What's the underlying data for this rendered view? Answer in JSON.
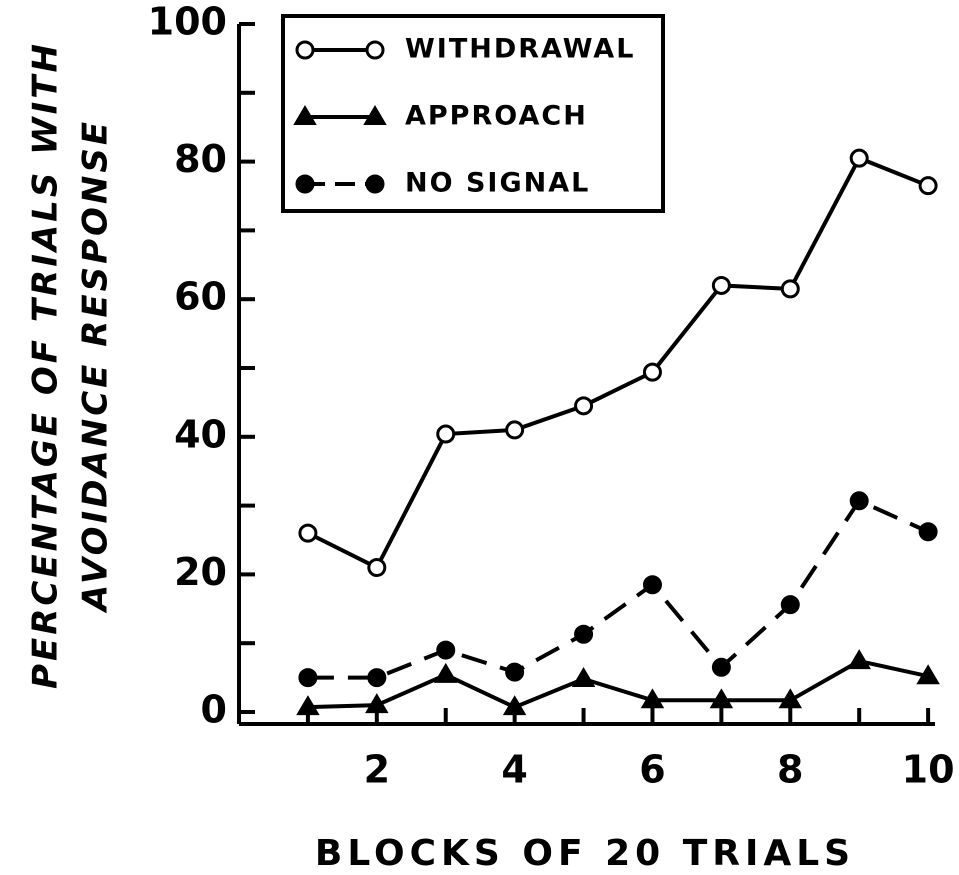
{
  "chart_data": {
    "type": "line",
    "ylabel": [
      "PERCENTAGE OF TRIALS WITH",
      "AVOIDANCE RESPONSE"
    ],
    "xlabel": "BLOCKS OF 20 TRIALS",
    "x": [
      1,
      2,
      3,
      4,
      5,
      6,
      7,
      8,
      9,
      10
    ],
    "series": [
      {
        "name": "WITHDRAWAL",
        "color": "#000000",
        "marker": "open-circle",
        "dashed": false,
        "values": [
          26,
          21,
          40.4,
          41,
          44.5,
          49.4,
          62,
          61.5,
          80.5,
          76.5
        ]
      },
      {
        "name": "APPROACH",
        "color": "#000000",
        "marker": "triangle",
        "dashed": false,
        "values": [
          0.7,
          1,
          5.4,
          0.7,
          4.8,
          1.7,
          1.7,
          1.7,
          7.4,
          5.2
        ]
      },
      {
        "name": "NO SIGNAL",
        "color": "#000000",
        "marker": "filled-circle",
        "dashed": true,
        "values": [
          5,
          5,
          9,
          5.8,
          11.3,
          18.5,
          6.5,
          15.6,
          30.7,
          26.2
        ]
      }
    ],
    "xlim": [
      0,
      10.1
    ],
    "xticks": [
      2,
      4,
      6,
      8,
      10
    ],
    "xminorticks": [
      1,
      3,
      5,
      7,
      9
    ],
    "ylim": [
      0,
      100
    ],
    "yticks": [
      0,
      20,
      40,
      60,
      80,
      100
    ],
    "yminorticks": [
      10,
      30,
      50,
      70,
      90
    ],
    "legend": "upper-left"
  }
}
